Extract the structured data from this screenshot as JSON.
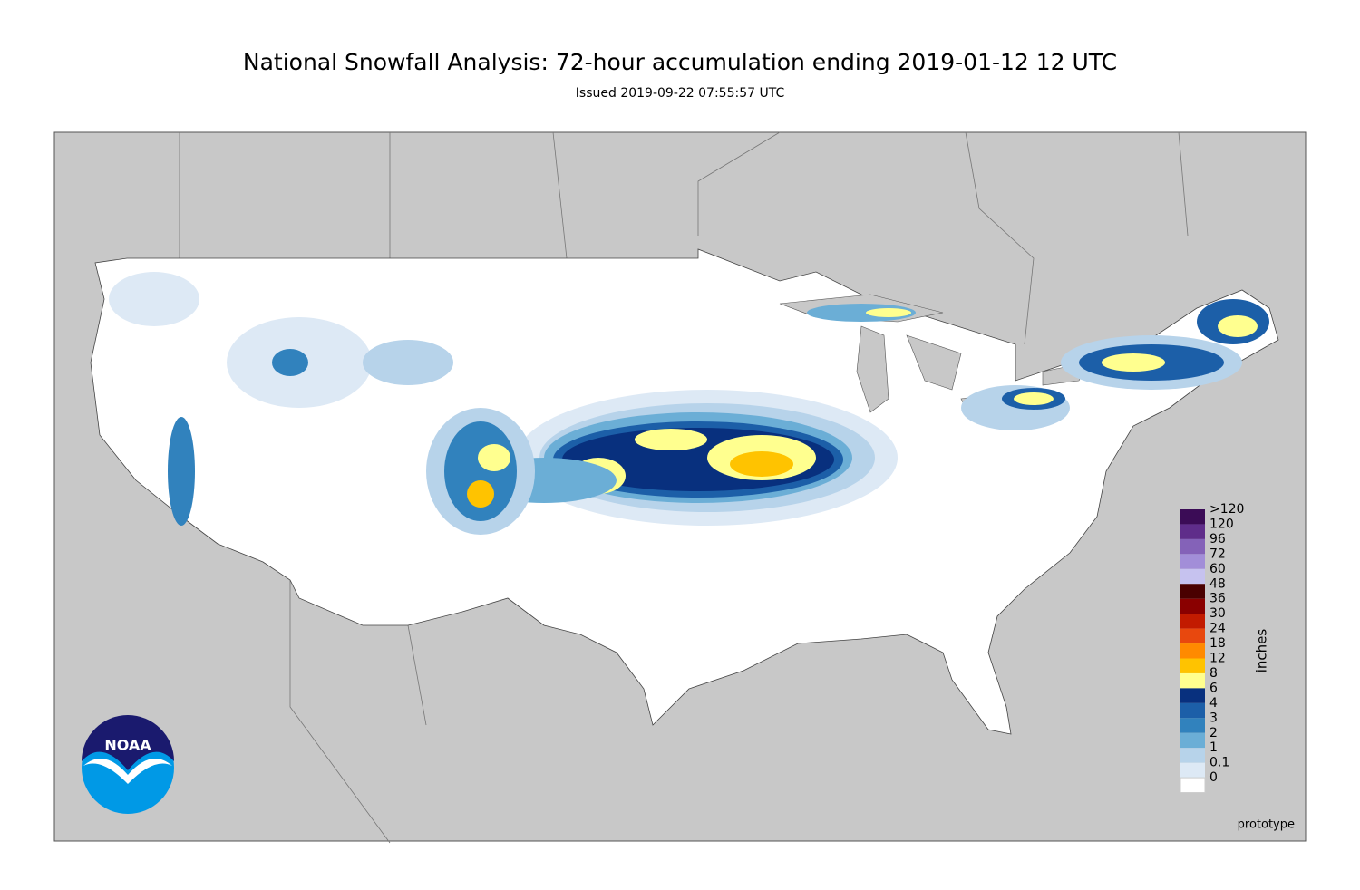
{
  "title": "National Snowfall Analysis: 72-hour accumulation ending 2019-01-12 12 UTC",
  "subtitle": "Issued 2019-09-22 07:55:57 UTC",
  "legend": {
    "title": "inches",
    "levels": [
      ">120",
      "120",
      "96",
      "72",
      "60",
      "48",
      "36",
      "30",
      "24",
      "18",
      "12",
      "8",
      "6",
      "4",
      "3",
      "2",
      "1",
      "0.1",
      "0"
    ],
    "colors": [
      "#3b0c56",
      "#5f2d8a",
      "#8462b8",
      "#a28ed8",
      "#c6c2ef",
      "#4a0000",
      "#8a0000",
      "#c21b00",
      "#e8480e",
      "#ff8a00",
      "#ffc300",
      "#ffff8f",
      "#08307e",
      "#1c5fa8",
      "#3182bd",
      "#6baed6",
      "#b7d3ea",
      "#dde9f5",
      "#ffffff"
    ]
  },
  "logo": "NOAA",
  "note": "prototype"
}
